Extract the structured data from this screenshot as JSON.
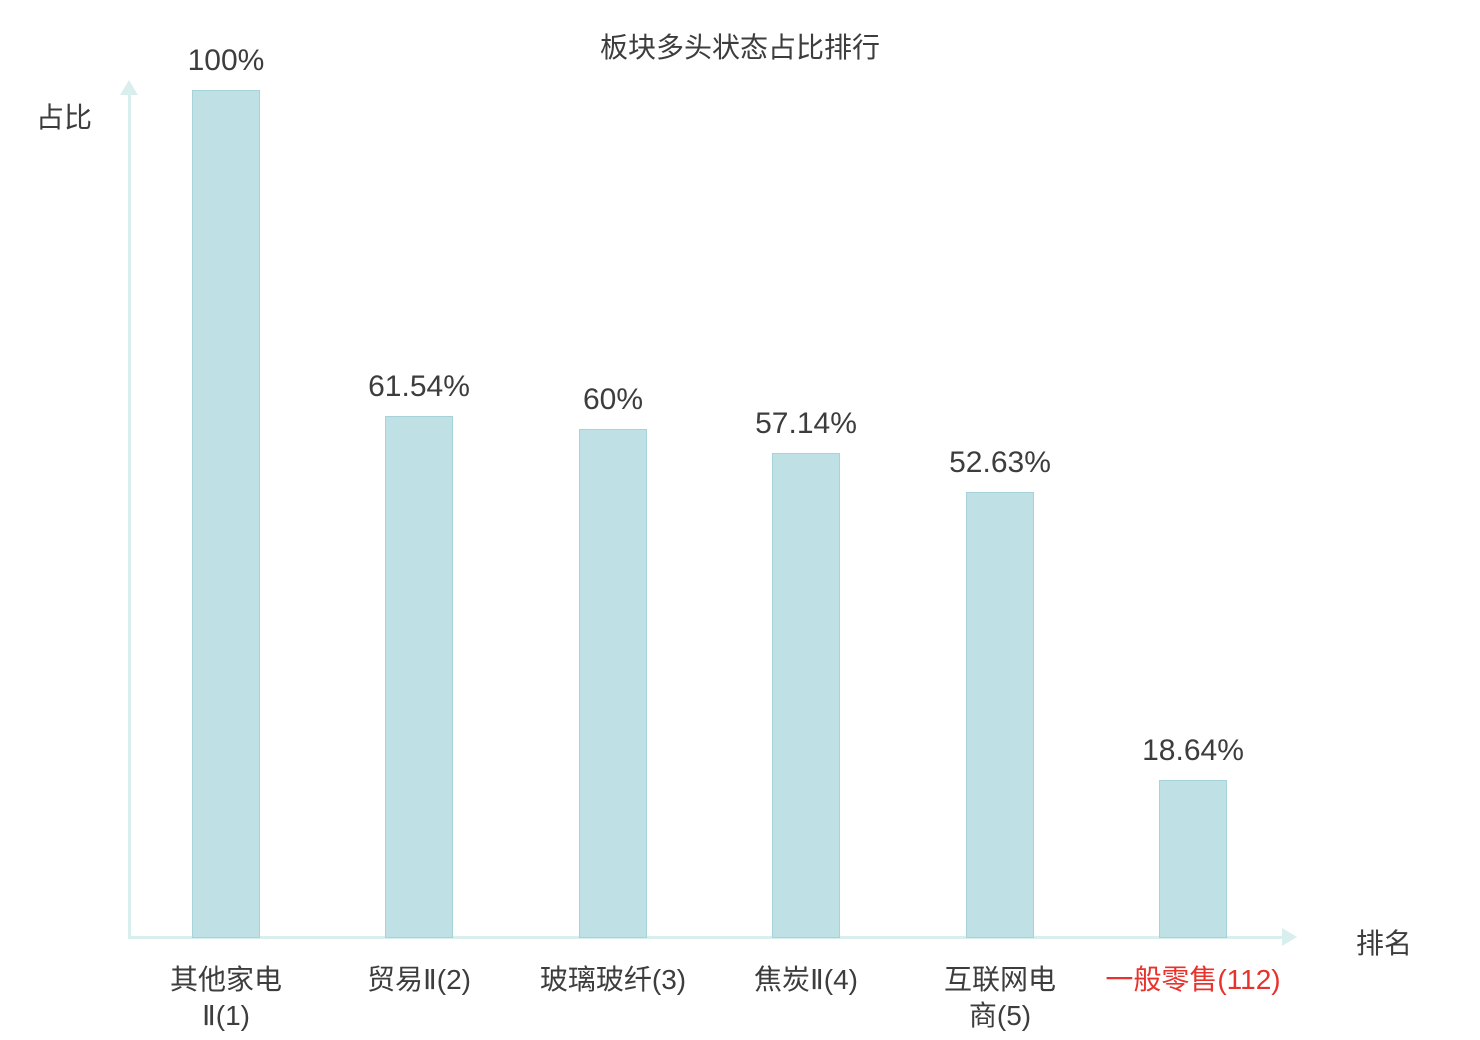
{
  "chart_data": {
    "type": "bar",
    "title": "板块多头状态占比排行",
    "ylabel": "占比",
    "xlabel": "排名",
    "categories": [
      "其他家电Ⅱ(1)",
      "贸易Ⅱ(2)",
      "玻璃玻纤(3)",
      "焦炭Ⅱ(4)",
      "互联网电商(5)",
      "一般零售(112)"
    ],
    "category_lines": [
      [
        "其他家电",
        "Ⅱ(1)"
      ],
      [
        "贸易Ⅱ(2)"
      ],
      [
        "玻璃玻纤(3)"
      ],
      [
        "焦炭Ⅱ(4)"
      ],
      [
        "互联网电",
        "商(5)"
      ],
      [
        "一般零售(112)"
      ]
    ],
    "values": [
      100,
      61.54,
      60,
      57.14,
      52.63,
      18.64
    ],
    "value_labels": [
      "100%",
      "61.54%",
      "60%",
      "57.14%",
      "52.63%",
      "18.64%"
    ],
    "ylim": [
      0,
      100
    ],
    "grid": false,
    "legend": "none",
    "bar_color": "#bfe1e6",
    "bar_border_color": "#a6d3da",
    "axis_color": "#d9efee",
    "text_color": "#3d3d3d",
    "highlight_index": 5,
    "highlight_color": "#e8322c"
  }
}
